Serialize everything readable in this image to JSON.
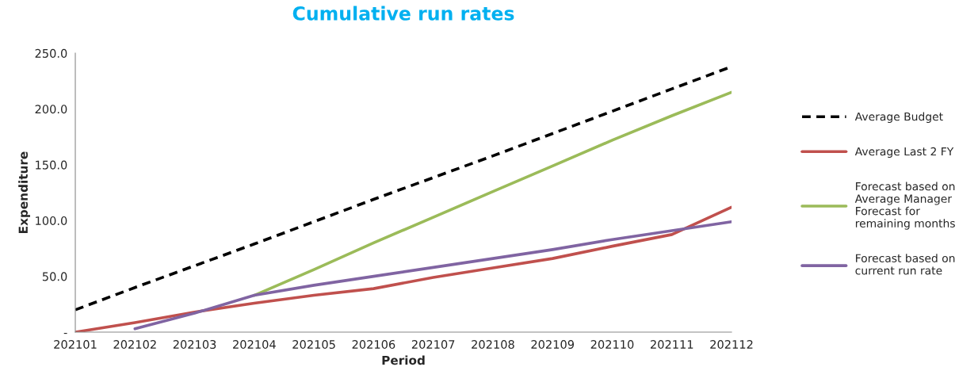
{
  "chart_data": {
    "type": "line",
    "title": "Cumulative run rates",
    "xlabel": "Period",
    "ylabel": "Expenditure",
    "categories": [
      "202101",
      "202102",
      "202103",
      "202104",
      "202105",
      "202106",
      "202107",
      "202108",
      "202109",
      "202110",
      "202111",
      "202112"
    ],
    "series": [
      {
        "name": "Average Budget",
        "color": "#000000",
        "line_style": "dashed",
        "values": [
          20,
          40,
          59.5,
          79,
          99,
          119,
          138.5,
          158,
          178,
          198,
          218,
          238
        ]
      },
      {
        "name": "Average Last 2 FY",
        "color": "#c0504d",
        "values": [
          0,
          8.5,
          18,
          26,
          33,
          39,
          49,
          57.5,
          66,
          77,
          87.5,
          112
        ]
      },
      {
        "name": "Forecast based on\nAverage Manager\nForecast for\nremaining months",
        "color": "#9bbb59",
        "values": [
          null,
          null,
          null,
          33,
          56,
          80,
          103,
          126,
          149,
          172,
          194,
          215
        ]
      },
      {
        "name": "Forecast based on\ncurrent run rate",
        "color": "#8064a2",
        "values": [
          null,
          3,
          17,
          33,
          42,
          50,
          58,
          66,
          74,
          83,
          91,
          99
        ]
      }
    ],
    "ylim": [
      0,
      250
    ],
    "yticks": [
      {
        "value": 0,
        "label": "-"
      },
      {
        "value": 50,
        "label": "50.0"
      },
      {
        "value": 100,
        "label": "100.0"
      },
      {
        "value": 150,
        "label": "150.0"
      },
      {
        "value": 200,
        "label": "200.0"
      },
      {
        "value": 250,
        "label": "250.0"
      }
    ],
    "grid": false,
    "legend": "right",
    "marker": "none",
    "line_style": "solid"
  }
}
